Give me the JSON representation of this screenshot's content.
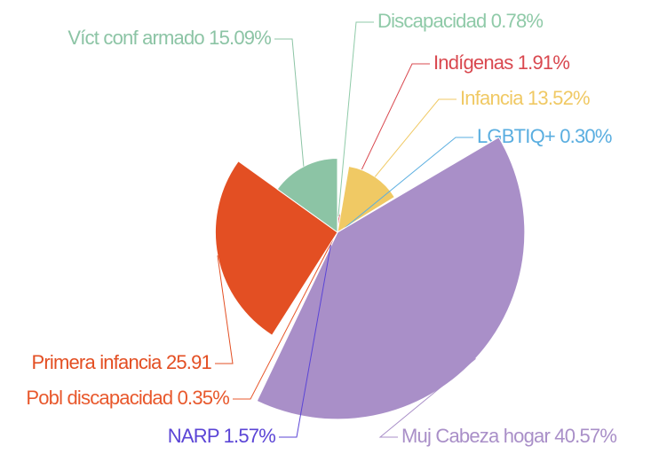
{
  "chart_data": {
    "type": "rose",
    "categories": [
      "Discapacidad",
      "Indígenas",
      "Infancia",
      "LGBTIQ+",
      "Muj Cabeza hogar",
      "NARP",
      "Pobl discapacidad",
      "Primera infancia",
      "Víct conf armado"
    ],
    "values": [
      0.78,
      1.91,
      13.52,
      0.3,
      40.57,
      1.57,
      0.35,
      25.91,
      15.09
    ],
    "value_labels": [
      "0.78%",
      "1.91%",
      "13.52%",
      "0.30%",
      "40.57%",
      "1.57%",
      "0.35%",
      "25.91",
      "15.09%"
    ],
    "colors": [
      "#8fcaa8",
      "#d9484f",
      "#f0c964",
      "#5aaee0",
      "#a98fc8",
      "#5b45d6",
      "#e8582c",
      "#e34f23",
      "#8cc4a5"
    ]
  }
}
